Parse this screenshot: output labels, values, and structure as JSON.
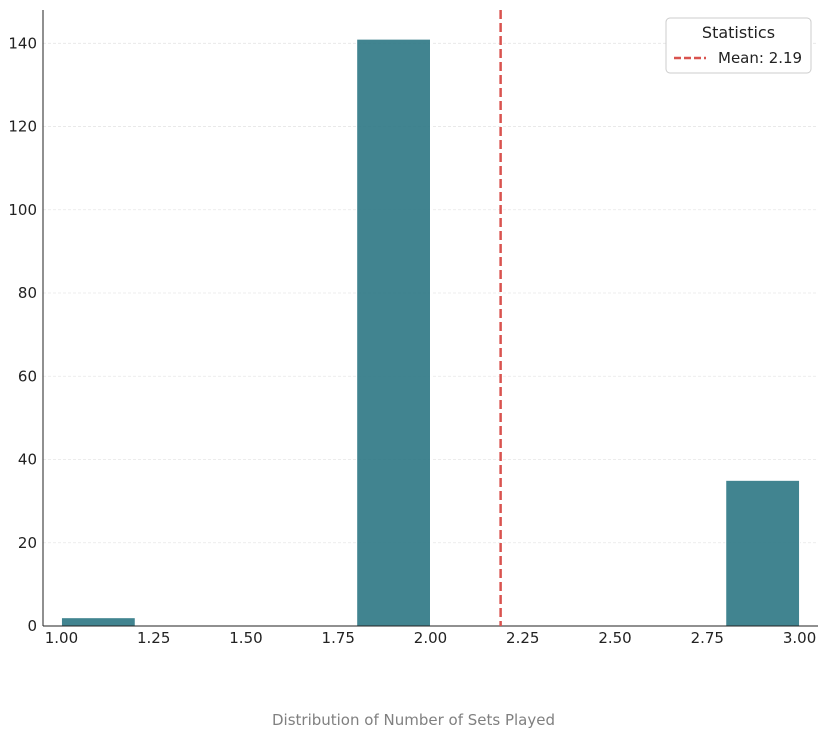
{
  "chart_data": {
    "type": "bar",
    "title": "",
    "xlabel": "",
    "ylabel": "",
    "caption": "Distribution of Number of Sets Played",
    "bins": [
      {
        "x0": 1.0,
        "x1": 1.2,
        "count": 2
      },
      {
        "x0": 1.2,
        "x1": 1.4,
        "count": 0
      },
      {
        "x0": 1.4,
        "x1": 1.6,
        "count": 0
      },
      {
        "x0": 1.6,
        "x1": 1.8,
        "count": 0
      },
      {
        "x0": 1.8,
        "x1": 2.0,
        "count": 141
      },
      {
        "x0": 2.0,
        "x1": 2.2,
        "count": 0
      },
      {
        "x0": 2.2,
        "x1": 2.4,
        "count": 0
      },
      {
        "x0": 2.4,
        "x1": 2.6,
        "count": 0
      },
      {
        "x0": 2.6,
        "x1": 2.8,
        "count": 0
      },
      {
        "x0": 2.8,
        "x1": 3.0,
        "count": 35
      }
    ],
    "mean": 2.19,
    "xlim": [
      0.95,
      3.05
    ],
    "ylim": [
      0,
      148
    ],
    "x_ticks": [
      "1.00",
      "1.25",
      "1.50",
      "1.75",
      "2.00",
      "2.25",
      "2.50",
      "2.75",
      "3.00"
    ],
    "y_ticks": [
      "0",
      "20",
      "40",
      "60",
      "80",
      "100",
      "120",
      "140"
    ],
    "grid": "horizontal",
    "legend": {
      "title": "Statistics",
      "position": "top-right",
      "entries": [
        {
          "label": "Mean: 2.19",
          "style": "dashed"
        }
      ]
    },
    "colors": {
      "bar": "#2c7784",
      "mean_line": "#d9534f",
      "grid": "#e6e6e6"
    }
  }
}
